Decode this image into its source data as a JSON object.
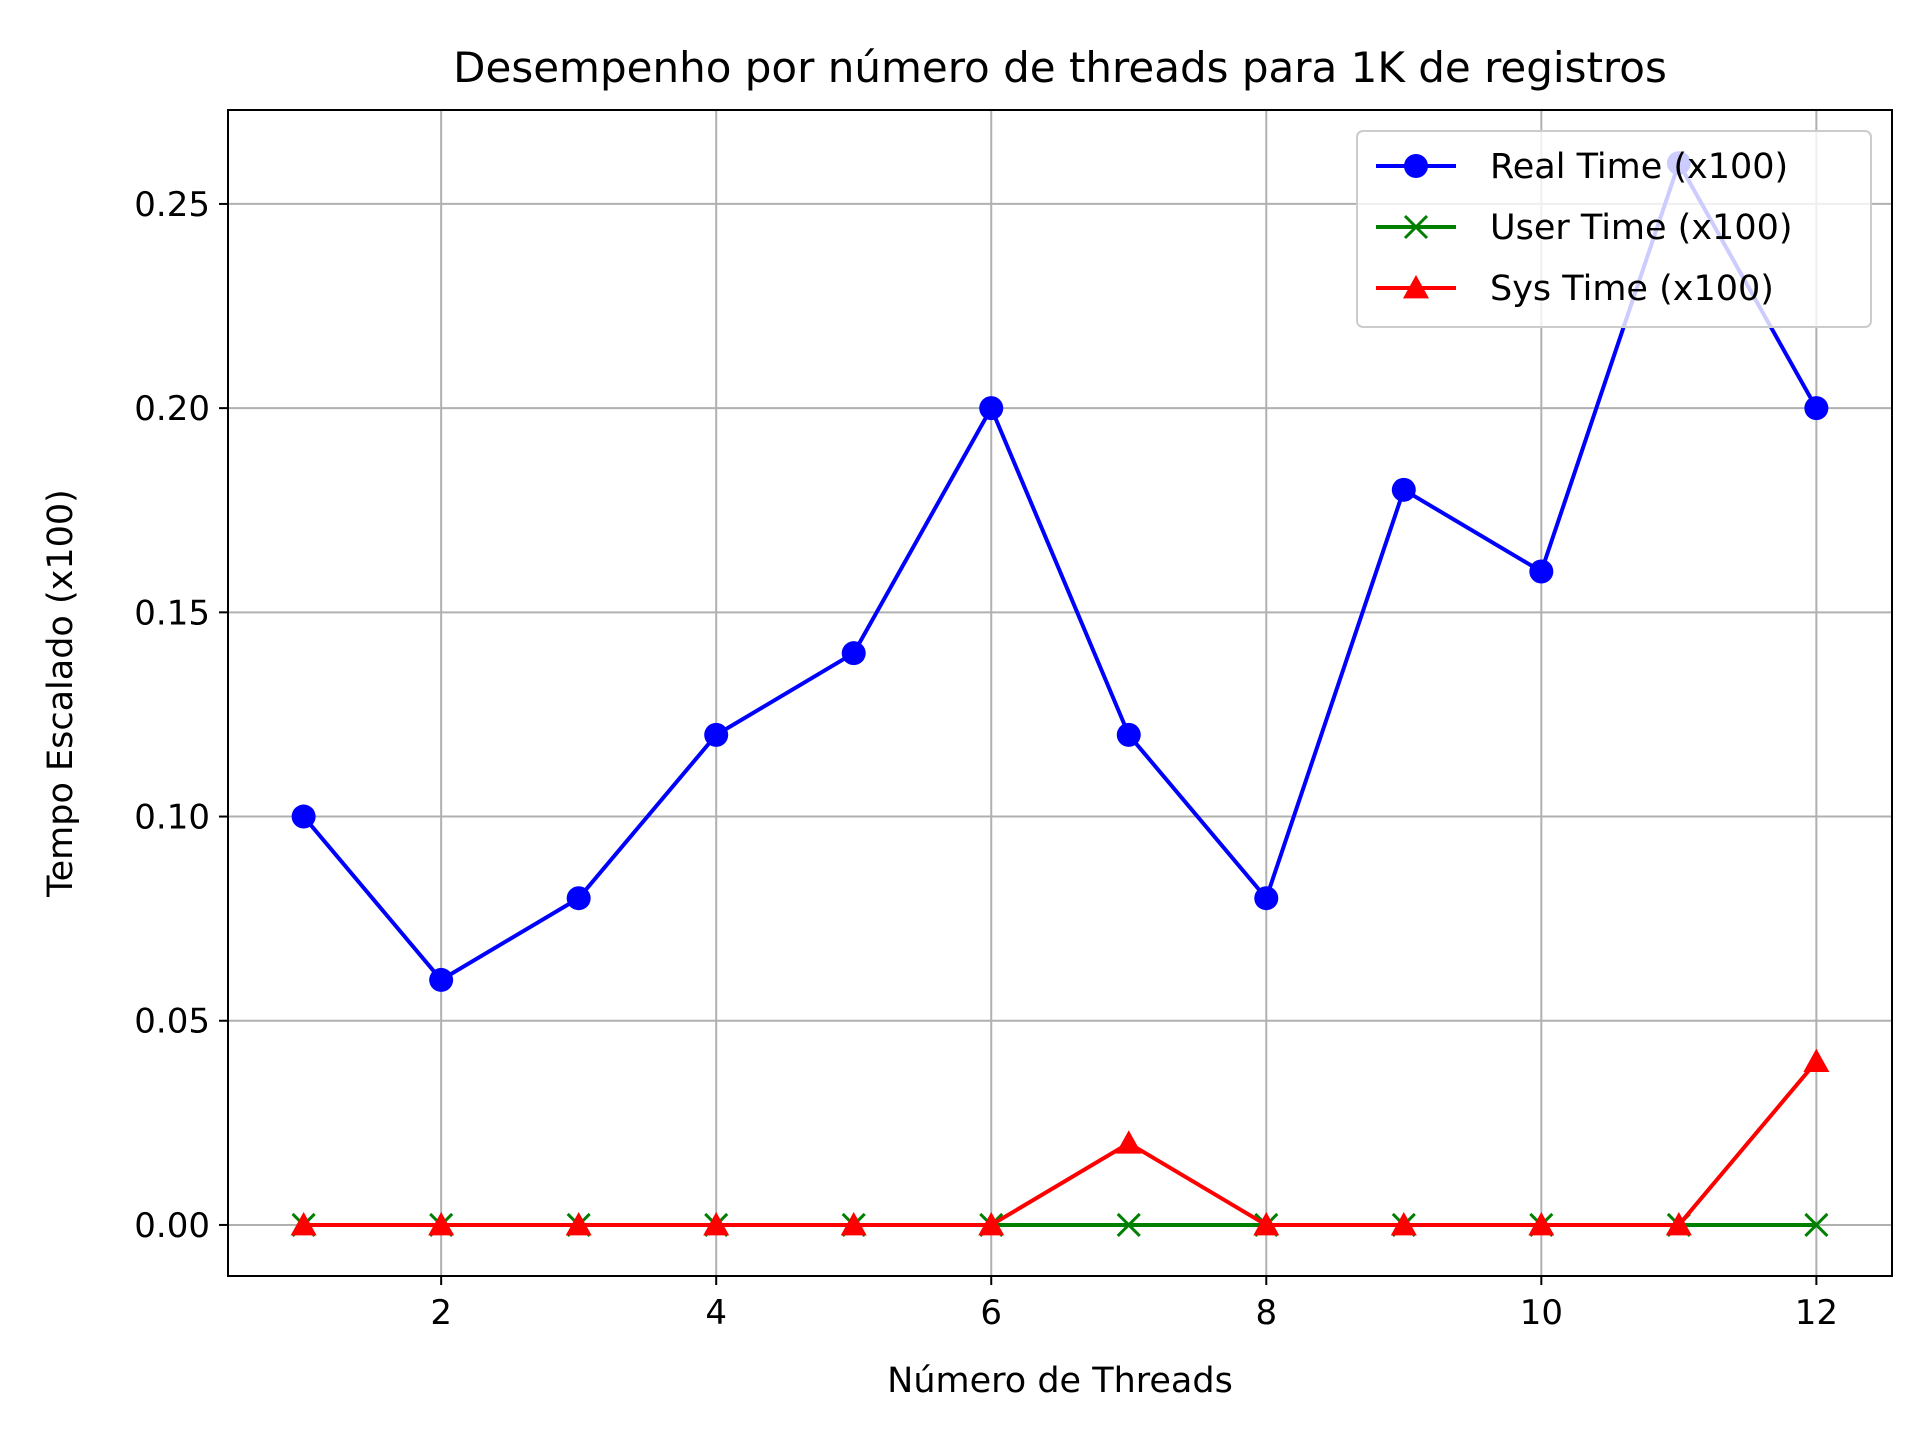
{
  "chart_data": {
    "type": "line",
    "title": "Desempenho por número de threads para 1K de registros",
    "xlabel": "Número de Threads",
    "ylabel": "Tempo Escalado (x100)",
    "x": [
      1,
      2,
      3,
      4,
      5,
      6,
      7,
      8,
      9,
      10,
      11,
      12
    ],
    "xlim": [
      0.45,
      12.55
    ],
    "ylim": [
      -0.0125,
      0.273
    ],
    "xticks": [
      "2",
      "4",
      "6",
      "8",
      "10",
      "12"
    ],
    "yticks": [
      "0.00",
      "0.05",
      "0.10",
      "0.15",
      "0.20",
      "0.25"
    ],
    "grid": true,
    "legend_position": "top-right",
    "series": [
      {
        "name": "Real Time (x100)",
        "color": "#0000ff",
        "marker": "circle",
        "values": [
          0.1,
          0.06,
          0.08,
          0.12,
          0.14,
          0.2,
          0.12,
          0.08,
          0.18,
          0.16,
          0.26,
          0.2
        ]
      },
      {
        "name": "User Time (x100)",
        "color": "#008000",
        "marker": "x",
        "values": [
          0,
          0,
          0,
          0,
          0,
          0,
          0,
          0,
          0,
          0,
          0,
          0
        ]
      },
      {
        "name": "Sys Time (x100)",
        "color": "#ff0000",
        "marker": "triangle",
        "values": [
          0,
          0,
          0,
          0,
          0,
          0,
          0.02,
          0,
          0,
          0,
          0,
          0.04
        ]
      }
    ]
  }
}
